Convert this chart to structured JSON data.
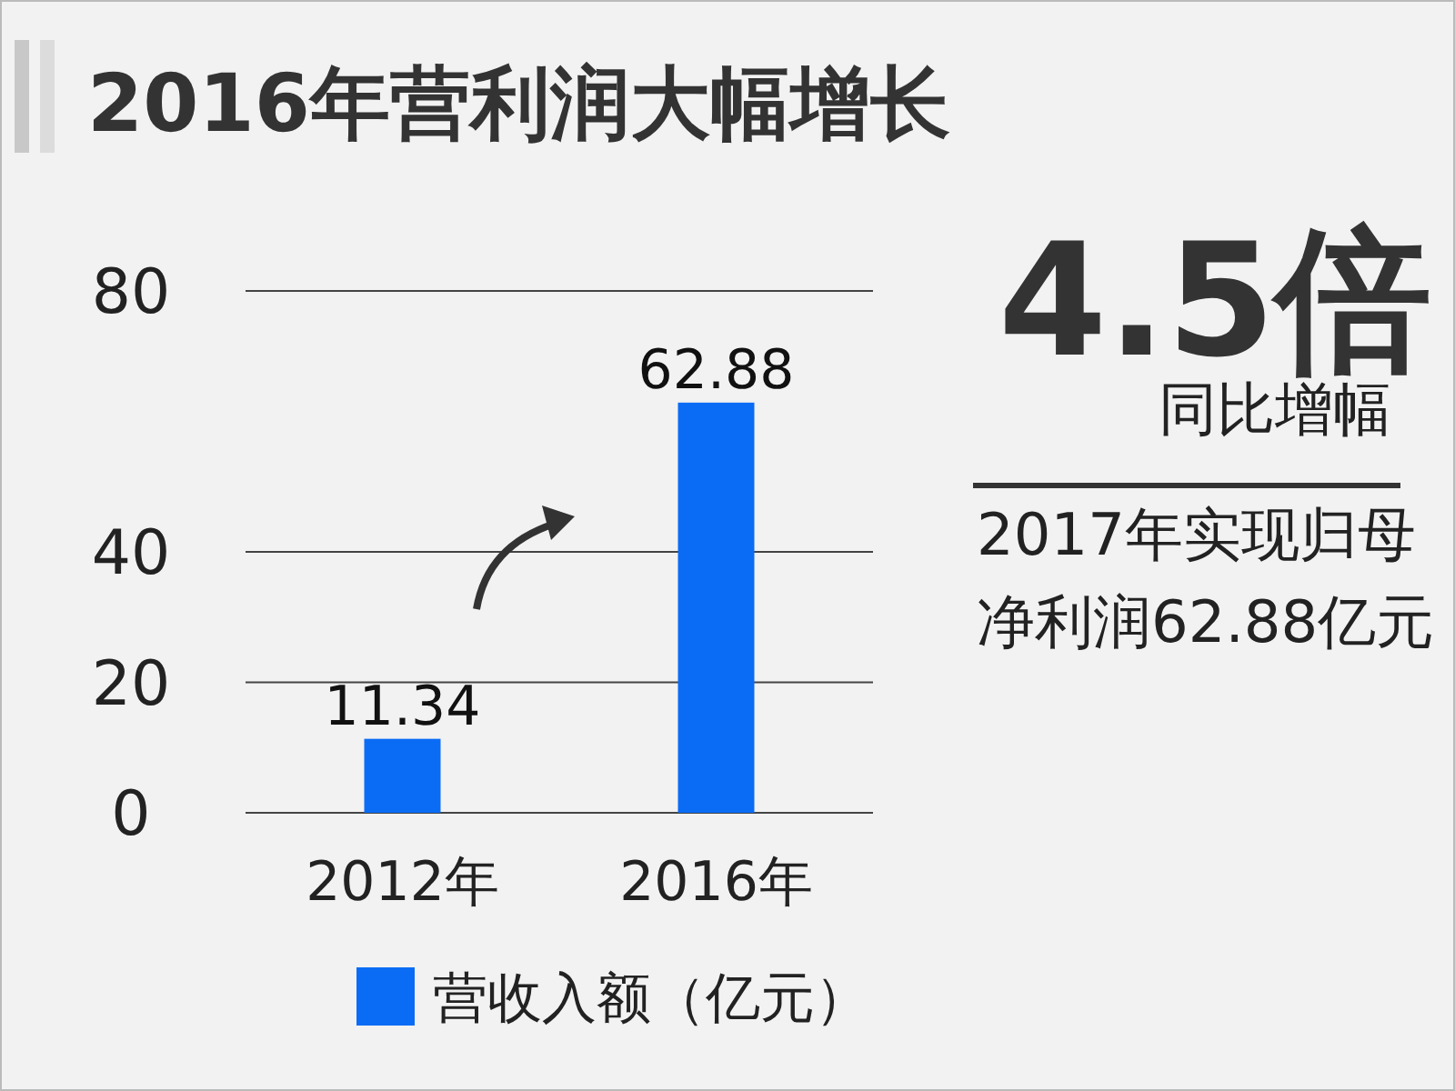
{
  "chart_data": {
    "type": "bar",
    "title": "2016年营利润大幅增长",
    "categories": [
      "2012年",
      "2016年"
    ],
    "series": [
      {
        "name": "营收入额（亿元）",
        "color": "#0a6cf5",
        "values": [
          11.34,
          62.88
        ]
      }
    ],
    "ylim": [
      0,
      80
    ],
    "yticks": [
      0,
      20,
      40,
      80
    ],
    "grid": "y",
    "data_labels": true,
    "legend": "bottom",
    "annotations": [
      "4.5倍",
      "同比增幅",
      "2017年实现归母净利润62.88亿元"
    ]
  }
}
